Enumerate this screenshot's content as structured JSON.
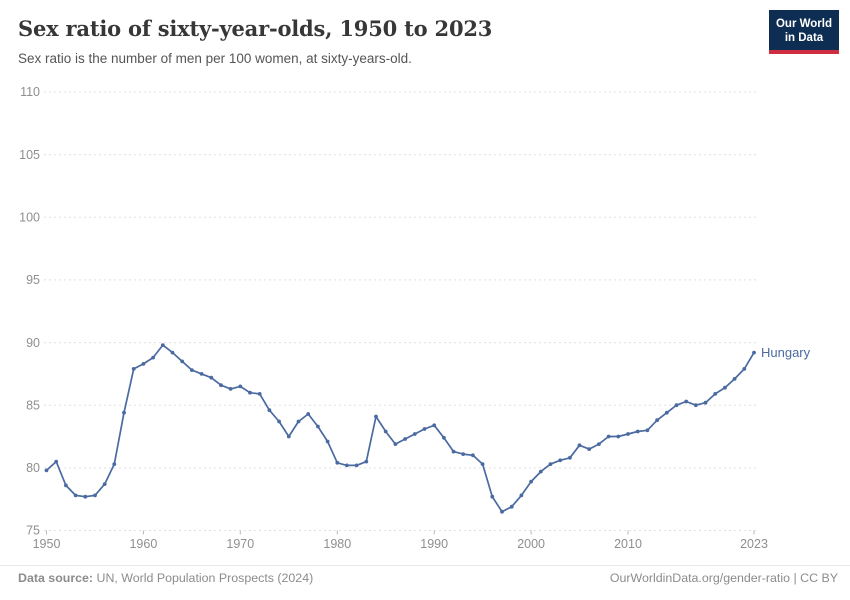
{
  "header": {
    "title": "Sex ratio of sixty-year-olds, 1950 to 2023",
    "subtitle": "Sex ratio is the number of men per 100 women, at sixty-years-old.",
    "logo": {
      "line1": "Our World",
      "line2": "in Data",
      "bg_color": "#0d2e52",
      "accent_color": "#cf2e41"
    }
  },
  "chart_data": {
    "type": "line",
    "title": "Sex ratio of sixty-year-olds, 1950 to 2023",
    "xlabel": "",
    "ylabel": "",
    "xlim": [
      1950,
      2023
    ],
    "ylim": [
      75,
      110
    ],
    "x_ticks": [
      1950,
      1960,
      1970,
      1980,
      1990,
      2000,
      2010,
      2023
    ],
    "y_ticks": [
      75,
      80,
      85,
      90,
      95,
      100,
      105,
      110
    ],
    "grid": "horizontal-dashed",
    "legend_position": "end-of-line-label",
    "marker": "dot",
    "grid_color": "#e0e0e0",
    "tick_label_color": "#8f8f8f",
    "series": [
      {
        "name": "Hungary",
        "color": "#4a6aa0",
        "years": [
          1950,
          1951,
          1952,
          1953,
          1954,
          1955,
          1956,
          1957,
          1958,
          1959,
          1960,
          1961,
          1962,
          1963,
          1964,
          1965,
          1966,
          1967,
          1968,
          1969,
          1970,
          1971,
          1972,
          1973,
          1974,
          1975,
          1976,
          1977,
          1978,
          1979,
          1980,
          1981,
          1982,
          1983,
          1984,
          1985,
          1986,
          1987,
          1988,
          1989,
          1990,
          1991,
          1992,
          1993,
          1994,
          1995,
          1996,
          1997,
          1998,
          1999,
          2000,
          2001,
          2002,
          2003,
          2004,
          2005,
          2006,
          2007,
          2008,
          2009,
          2010,
          2011,
          2012,
          2013,
          2014,
          2015,
          2016,
          2017,
          2018,
          2019,
          2020,
          2021,
          2022,
          2023
        ],
        "values": [
          79.8,
          80.5,
          78.6,
          77.8,
          77.7,
          77.8,
          78.7,
          80.3,
          84.4,
          87.9,
          88.3,
          88.8,
          89.8,
          89.2,
          88.5,
          87.8,
          87.5,
          87.2,
          86.6,
          86.3,
          86.5,
          86.0,
          85.9,
          84.6,
          83.7,
          82.5,
          83.7,
          84.3,
          83.3,
          82.1,
          80.4,
          80.2,
          80.2,
          80.5,
          84.1,
          82.9,
          81.9,
          82.3,
          82.7,
          83.1,
          83.4,
          82.4,
          81.3,
          81.1,
          81.0,
          80.3,
          77.7,
          76.5,
          76.9,
          77.8,
          78.9,
          79.7,
          80.3,
          80.6,
          80.8,
          81.8,
          81.5,
          81.9,
          82.5,
          82.5,
          82.7,
          82.9,
          83.0,
          83.8,
          84.4,
          85.0,
          85.3,
          85.0,
          85.2,
          85.9,
          86.4,
          87.1,
          87.9,
          89.2
        ]
      }
    ]
  },
  "footer": {
    "source_label": "Data source:",
    "source_text": " UN, World Population Prospects (2024)",
    "link_text": "OurWorldinData.org/gender-ratio | CC BY"
  }
}
